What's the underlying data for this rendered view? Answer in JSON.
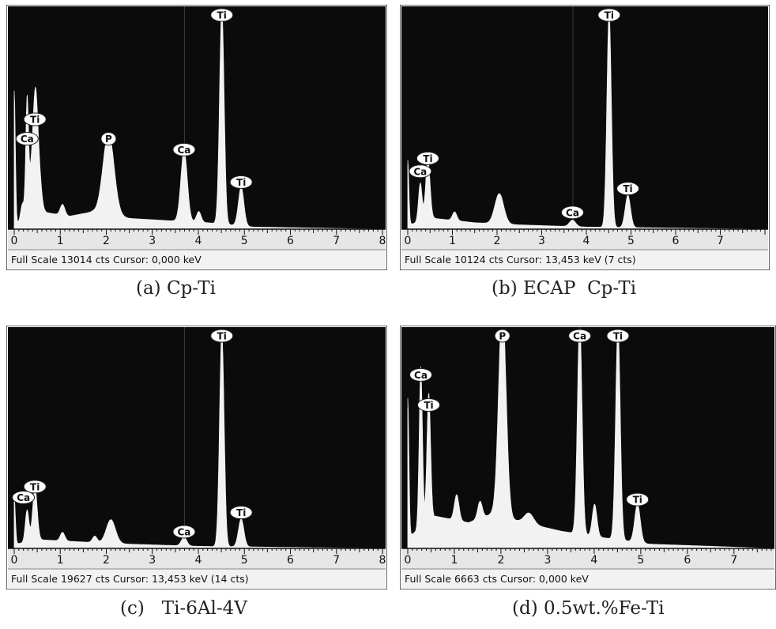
{
  "colors": {
    "background": "#0b0b0b",
    "spectrum": "#f2f2f2",
    "axis_strip": "#e6e6e6",
    "label_fill": "#ffffff"
  },
  "chart_data": [
    {
      "type": "area",
      "caption": "(a) Cp-Ti",
      "status": "Full Scale 13014 cts  Cursor: 0,000 keV",
      "xlabel": "",
      "ylabel": "",
      "xlim": [
        0,
        8
      ],
      "xticks": [
        "0",
        "1",
        "2",
        "3",
        "4",
        "5",
        "6",
        "7",
        "8"
      ],
      "peaks": [
        {
          "kev": 0.0,
          "height": 0.62,
          "width": 0.025
        },
        {
          "kev": 0.18,
          "height": 0.08,
          "width": 0.04
        },
        {
          "kev": 0.28,
          "height": 0.55,
          "width": 0.03
        },
        {
          "kev": 0.36,
          "height": 0.15,
          "width": 0.04
        },
        {
          "kev": 0.45,
          "height": 0.46,
          "width": 0.05
        },
        {
          "kev": 0.52,
          "height": 0.22,
          "width": 0.06
        },
        {
          "kev": 1.05,
          "height": 0.05,
          "width": 0.05
        },
        {
          "kev": 2.05,
          "height": 0.38,
          "width": 0.12
        },
        {
          "kev": 3.69,
          "height": 0.33,
          "width": 0.07
        },
        {
          "kev": 4.01,
          "height": 0.05,
          "width": 0.05
        },
        {
          "kev": 4.51,
          "height": 1.0,
          "width": 0.05
        },
        {
          "kev": 4.93,
          "height": 0.18,
          "width": 0.06
        }
      ],
      "baseline": [
        [
          0,
          0.02
        ],
        [
          0.6,
          0.08
        ],
        [
          1.2,
          0.06
        ],
        [
          1.7,
          0.08
        ],
        [
          2.5,
          0.05
        ],
        [
          3.3,
          0.04
        ],
        [
          4.2,
          0.03
        ],
        [
          5.2,
          0.01
        ],
        [
          8,
          0.0
        ]
      ],
      "peak_labels": [
        {
          "text": "Ti",
          "kev": 0.45,
          "height": 0.5
        },
        {
          "text": "Ca",
          "kev": 0.28,
          "height": 0.41
        },
        {
          "text": "P",
          "kev": 2.05,
          "height": 0.41
        },
        {
          "text": "Ca",
          "kev": 3.69,
          "height": 0.36
        },
        {
          "text": "Ti",
          "kev": 4.51,
          "height": 1.0
        },
        {
          "text": "Ti",
          "kev": 4.93,
          "height": 0.21
        }
      ]
    },
    {
      "type": "area",
      "caption": "(b) ECAP  Cp-Ti",
      "status": "Full Scale 10124 cts  Cursor: 13,453 keV (7 cts)",
      "xlabel": "",
      "ylabel": "",
      "xlim": [
        0,
        8
      ],
      "xticks": [
        "0",
        "1",
        "2",
        "3",
        "4",
        "5",
        "6",
        "7"
      ],
      "peaks": [
        {
          "kev": 0.0,
          "height": 0.3,
          "width": 0.025
        },
        {
          "kev": 0.28,
          "height": 0.18,
          "width": 0.04
        },
        {
          "kev": 0.45,
          "height": 0.28,
          "width": 0.05
        },
        {
          "kev": 1.05,
          "height": 0.04,
          "width": 0.05
        },
        {
          "kev": 2.05,
          "height": 0.14,
          "width": 0.1
        },
        {
          "kev": 3.69,
          "height": 0.03,
          "width": 0.07
        },
        {
          "kev": 4.51,
          "height": 1.0,
          "width": 0.05
        },
        {
          "kev": 4.93,
          "height": 0.15,
          "width": 0.06
        }
      ],
      "baseline": [
        [
          0,
          0.02
        ],
        [
          0.6,
          0.05
        ],
        [
          1.5,
          0.03
        ],
        [
          2.5,
          0.02
        ],
        [
          4,
          0.01
        ],
        [
          8,
          0.0
        ]
      ],
      "peak_labels": [
        {
          "text": "Ti",
          "kev": 0.45,
          "height": 0.32
        },
        {
          "text": "Ca",
          "kev": 0.28,
          "height": 0.26
        },
        {
          "text": "Ca",
          "kev": 3.69,
          "height": 0.07
        },
        {
          "text": "Ti",
          "kev": 4.51,
          "height": 1.0
        },
        {
          "text": "Ti",
          "kev": 4.93,
          "height": 0.18
        }
      ]
    },
    {
      "type": "area",
      "caption": "(c)   Ti-6Al-4V",
      "status": "Full Scale 19627 cts  Cursor: 13,453 keV (14 cts)",
      "xlabel": "",
      "ylabel": "",
      "xlim": [
        0,
        8
      ],
      "xticks": [
        "0",
        "1",
        "2",
        "3",
        "4",
        "5",
        "6",
        "7",
        "8"
      ],
      "peaks": [
        {
          "kev": 0.0,
          "height": 0.22,
          "width": 0.025
        },
        {
          "kev": 0.28,
          "height": 0.15,
          "width": 0.04
        },
        {
          "kev": 0.45,
          "height": 0.25,
          "width": 0.05
        },
        {
          "kev": 1.05,
          "height": 0.04,
          "width": 0.05
        },
        {
          "kev": 1.75,
          "height": 0.03,
          "width": 0.05
        },
        {
          "kev": 2.1,
          "height": 0.11,
          "width": 0.1
        },
        {
          "kev": 3.69,
          "height": 0.04,
          "width": 0.06
        },
        {
          "kev": 4.51,
          "height": 1.0,
          "width": 0.05
        },
        {
          "kev": 4.93,
          "height": 0.13,
          "width": 0.06
        }
      ],
      "baseline": [
        [
          0,
          0.02
        ],
        [
          0.6,
          0.04
        ],
        [
          1.5,
          0.03
        ],
        [
          2.5,
          0.02
        ],
        [
          4,
          0.01
        ],
        [
          8,
          0.0
        ]
      ],
      "peak_labels": [
        {
          "text": "Ti",
          "kev": 0.45,
          "height": 0.28
        },
        {
          "text": "Ca",
          "kev": 0.2,
          "height": 0.23
        },
        {
          "text": "Ca",
          "kev": 3.69,
          "height": 0.07
        },
        {
          "text": "Ti",
          "kev": 4.51,
          "height": 1.0
        },
        {
          "text": "Ti",
          "kev": 4.93,
          "height": 0.16
        }
      ]
    },
    {
      "type": "area",
      "caption": "(d) 0.5wt.%Fe-Ti",
      "status": "Full Scale 6663 cts  Cursor: 0,000 keV",
      "xlabel": "",
      "ylabel": "",
      "xlim": [
        0,
        7.8
      ],
      "xticks": [
        "0",
        "1",
        "2",
        "3",
        "4",
        "5",
        "6",
        "7"
      ],
      "peaks": [
        {
          "kev": 0.0,
          "height": 0.65,
          "width": 0.025
        },
        {
          "kev": 0.28,
          "height": 0.75,
          "width": 0.035
        },
        {
          "kev": 0.45,
          "height": 0.6,
          "width": 0.04
        },
        {
          "kev": 1.05,
          "height": 0.12,
          "width": 0.05
        },
        {
          "kev": 1.55,
          "height": 0.08,
          "width": 0.05
        },
        {
          "kev": 2.03,
          "height": 1.0,
          "width": 0.08
        },
        {
          "kev": 2.6,
          "height": 0.05,
          "width": 0.1
        },
        {
          "kev": 3.69,
          "height": 1.0,
          "width": 0.05
        },
        {
          "kev": 4.01,
          "height": 0.15,
          "width": 0.05
        },
        {
          "kev": 4.51,
          "height": 1.0,
          "width": 0.05
        },
        {
          "kev": 4.93,
          "height": 0.18,
          "width": 0.06
        }
      ],
      "baseline": [
        [
          0,
          0.05
        ],
        [
          0.6,
          0.15
        ],
        [
          1.3,
          0.12
        ],
        [
          1.8,
          0.16
        ],
        [
          2.5,
          0.12
        ],
        [
          3.3,
          0.08
        ],
        [
          4.2,
          0.05
        ],
        [
          5.2,
          0.02
        ],
        [
          7.8,
          0.0
        ]
      ],
      "peak_labels": [
        {
          "text": "P",
          "kev": 2.03,
          "height": 1.0
        },
        {
          "text": "Ca",
          "kev": 3.69,
          "height": 1.0
        },
        {
          "text": "Ti",
          "kev": 4.51,
          "height": 1.0
        },
        {
          "text": "Ca",
          "kev": 0.28,
          "height": 0.8
        },
        {
          "text": "Ti",
          "kev": 0.45,
          "height": 0.66
        },
        {
          "text": "Ti",
          "kev": 4.93,
          "height": 0.22
        }
      ]
    }
  ]
}
